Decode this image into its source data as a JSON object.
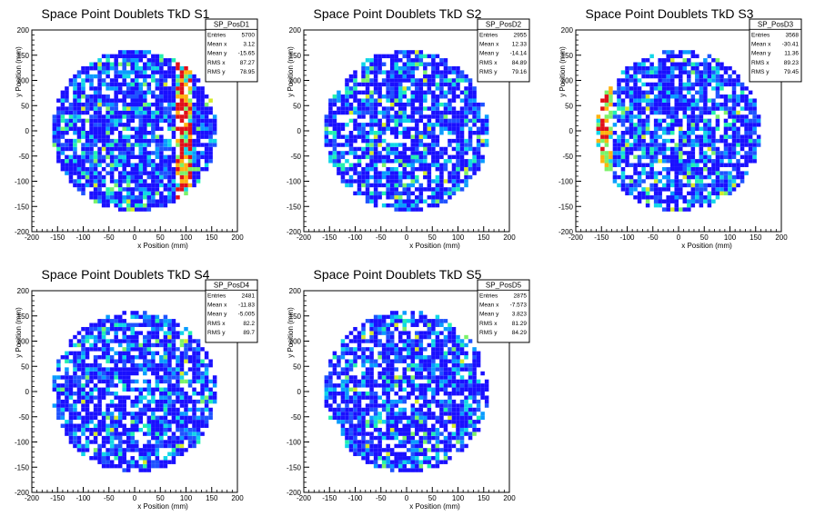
{
  "chart_data": [
    {
      "type": "heatmap",
      "title": "Space Point Doublets TkD S1",
      "xlabel": "x Position (mm)",
      "ylabel": "y Position (mm)",
      "xlim": [
        -200,
        200
      ],
      "ylim": [
        -200,
        200
      ],
      "xticks": [
        "-200",
        "-150",
        "-100",
        "-50",
        "0",
        "50",
        "100",
        "150",
        "200"
      ],
      "yticks": [
        "-200",
        "-150",
        "-100",
        "-50",
        "0",
        "50",
        "100",
        "150",
        "200"
      ],
      "stats": {
        "name": "SP_PosD1",
        "rows": [
          [
            "Entries",
            "5700"
          ],
          [
            "Mean x",
            "3.12"
          ],
          [
            "Mean y",
            "-15.65"
          ],
          [
            "RMS x",
            "87.27"
          ],
          [
            "RMS y",
            "78.95"
          ]
        ]
      },
      "entries": 5700,
      "mean_x": 3.12,
      "mean_y": -15.65,
      "rms_x": 87.27,
      "rms_y": 78.95,
      "disk_radius": 160,
      "hot_stripes_x": [
        90,
        100
      ]
    },
    {
      "type": "heatmap",
      "title": "Space Point Doublets TkD S2",
      "xlabel": "x Position (mm)",
      "ylabel": "y Position (mm)",
      "xlim": [
        -200,
        200
      ],
      "ylim": [
        -200,
        200
      ],
      "xticks": [
        "-200",
        "-150",
        "-100",
        "-50",
        "0",
        "50",
        "100",
        "150",
        "200"
      ],
      "yticks": [
        "-200",
        "-150",
        "-100",
        "-50",
        "0",
        "50",
        "100",
        "150",
        "200"
      ],
      "stats": {
        "name": "SP_PosD2",
        "rows": [
          [
            "Entries",
            "2955"
          ],
          [
            "Mean x",
            "12.33"
          ],
          [
            "Mean y",
            "-14.14"
          ],
          [
            "RMS x",
            "84.89"
          ],
          [
            "RMS y",
            "79.16"
          ]
        ]
      },
      "entries": 2955,
      "mean_x": 12.33,
      "mean_y": -14.14,
      "rms_x": 84.89,
      "rms_y": 79.16,
      "disk_radius": 160,
      "hot_stripes_x": []
    },
    {
      "type": "heatmap",
      "title": "Space Point Doublets TkD S3",
      "xlabel": "x Position (mm)",
      "ylabel": "y Position (mm)",
      "xlim": [
        -200,
        200
      ],
      "ylim": [
        -200,
        200
      ],
      "xticks": [
        "-200",
        "-150",
        "-100",
        "-50",
        "0",
        "50",
        "100",
        "150",
        "200"
      ],
      "yticks": [
        "-200",
        "-150",
        "-100",
        "-50",
        "0",
        "50",
        "100",
        "150",
        "200"
      ],
      "stats": {
        "name": "SP_PosD3",
        "rows": [
          [
            "Entries",
            "3568"
          ],
          [
            "Mean x",
            "-30.41"
          ],
          [
            "Mean y",
            "11.36"
          ],
          [
            "RMS x",
            "89.23"
          ],
          [
            "RMS y",
            "79.45"
          ]
        ]
      },
      "entries": 3568,
      "mean_x": -30.41,
      "mean_y": 11.36,
      "rms_x": 89.23,
      "rms_y": 79.45,
      "disk_radius": 160,
      "hot_stripes_x": [
        -150,
        -140
      ]
    },
    {
      "type": "heatmap",
      "title": "Space Point Doublets TkD S4",
      "xlabel": "x Position (mm)",
      "ylabel": "y Position (mm)",
      "xlim": [
        -200,
        200
      ],
      "ylim": [
        -200,
        200
      ],
      "xticks": [
        "-200",
        "-150",
        "-100",
        "-50",
        "0",
        "50",
        "100",
        "150",
        "200"
      ],
      "yticks": [
        "-200",
        "-150",
        "-100",
        "-50",
        "0",
        "50",
        "100",
        "150",
        "200"
      ],
      "stats": {
        "name": "SP_PosD4",
        "rows": [
          [
            "Entries",
            "2481"
          ],
          [
            "Mean x",
            "-11.83"
          ],
          [
            "Mean y",
            "-5.005"
          ],
          [
            "RMS x",
            "82.2"
          ],
          [
            "RMS y",
            "89.7"
          ]
        ]
      },
      "entries": 2481,
      "mean_x": -11.83,
      "mean_y": -5.005,
      "rms_x": 82.2,
      "rms_y": 89.7,
      "disk_radius": 160,
      "hot_stripes_x": []
    },
    {
      "type": "heatmap",
      "title": "Space Point Doublets TkD S5",
      "xlabel": "x Position (mm)",
      "ylabel": "y Position (mm)",
      "xlim": [
        -200,
        200
      ],
      "ylim": [
        -200,
        200
      ],
      "xticks": [
        "-200",
        "-150",
        "-100",
        "-50",
        "0",
        "50",
        "100",
        "150",
        "200"
      ],
      "yticks": [
        "-200",
        "-150",
        "-100",
        "-50",
        "0",
        "50",
        "100",
        "150",
        "200"
      ],
      "stats": {
        "name": "SP_PosD5",
        "rows": [
          [
            "Entries",
            "2875"
          ],
          [
            "Mean x",
            "-7.573"
          ],
          [
            "Mean y",
            "3.823"
          ],
          [
            "RMS x",
            "81.29"
          ],
          [
            "RMS y",
            "84.29"
          ]
        ]
      },
      "entries": 2875,
      "mean_x": -7.573,
      "mean_y": 3.823,
      "rms_x": 81.29,
      "rms_y": 84.29,
      "disk_radius": 160,
      "hot_stripes_x": []
    }
  ],
  "colors": {
    "palette": [
      "#1a10ff",
      "#1f53ff",
      "#0a9cff",
      "#11d6e8",
      "#23f0b1",
      "#7bf26a",
      "#d5ea2a",
      "#ffb30f",
      "#ff4b0a",
      "#e0101a"
    ]
  }
}
